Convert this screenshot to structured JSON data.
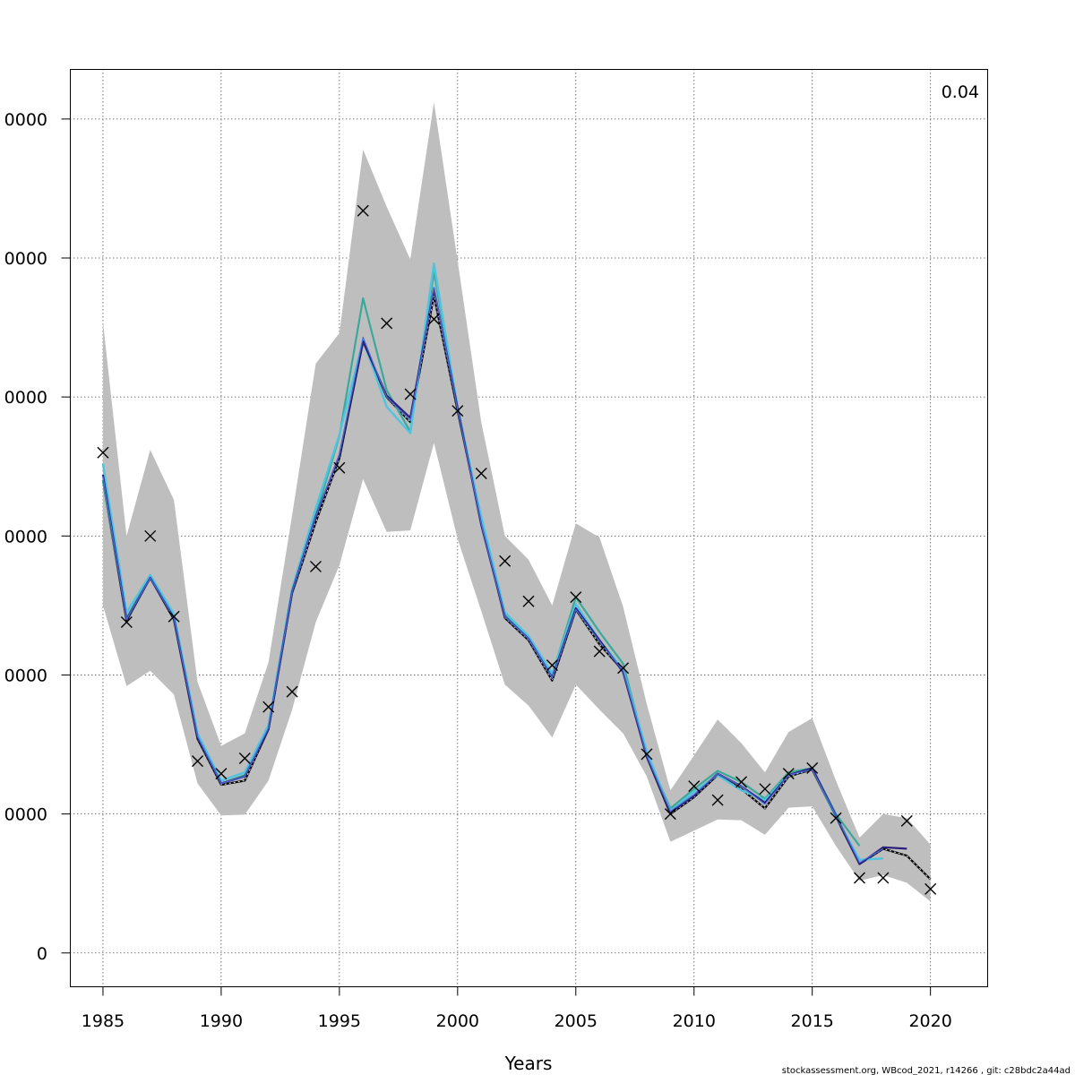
{
  "chart_data": {
    "type": "line",
    "xlabel": "Years",
    "ylabel": "",
    "annotation": "0.04",
    "footer": "stockassessment.org, WBcod_2021, r14266 , git: c28bdc2a44ad",
    "xlim": [
      1983.6,
      2022.4
    ],
    "ylim": [
      -2400,
      63600
    ],
    "x_ticks": [
      1985,
      1990,
      1995,
      2000,
      2005,
      2010,
      2015,
      2020
    ],
    "y_ticks": [
      0,
      10000,
      20000,
      30000,
      40000,
      50000,
      60000
    ],
    "y_tick_labels": [
      "0",
      "0000",
      "0000",
      "0000",
      "0000",
      "0000",
      "0000"
    ],
    "grid": true,
    "colors": {
      "band": "#bebebe",
      "base": "#000000",
      "teal": "#3aa99a",
      "cyan": "#4fc4e0",
      "navy": "#2a1f7a",
      "blue": "#4a6fd6",
      "observed": "#000000"
    },
    "confidence_band": {
      "years": [
        1985,
        1986,
        1987,
        1988,
        1989,
        1990,
        1991,
        1992,
        1993,
        1994,
        1995,
        1996,
        1997,
        1998,
        1999,
        2000,
        2001,
        2002,
        2003,
        2004,
        2005,
        2006,
        2007,
        2008,
        2009,
        2010,
        2011,
        2012,
        2013,
        2014,
        2015,
        2016,
        2017,
        2018,
        2019,
        2020
      ],
      "upper": [
        45400,
        30000,
        36200,
        32600,
        19500,
        14900,
        15800,
        20900,
        31500,
        42400,
        44600,
        57800,
        53700,
        49900,
        61200,
        49800,
        38200,
        30000,
        28300,
        25000,
        30900,
        29900,
        24900,
        17900,
        11700,
        14200,
        16800,
        15100,
        13000,
        15900,
        16900,
        12400,
        8300,
        10000,
        9700,
        7800
      ],
      "lower": [
        25000,
        19200,
        20300,
        18600,
        12200,
        9900,
        9950,
        12400,
        17500,
        23800,
        27900,
        34100,
        30300,
        30400,
        36700,
        29800,
        24600,
        19300,
        17800,
        15500,
        19300,
        17500,
        15800,
        12700,
        8000,
        8800,
        9600,
        9550,
        8500,
        10450,
        10550,
        7700,
        5200,
        5600,
        5050,
        3700
      ]
    },
    "series": [
      {
        "name": "",
        "key": "base",
        "values": [
          34000,
          23900,
          27000,
          24000,
          15400,
          12100,
          12400,
          16100,
          25900,
          31000,
          35600,
          44000,
          40000,
          38200,
          47300,
          39000,
          31000,
          24100,
          22500,
          19600,
          24700,
          22200,
          20300,
          14100,
          10000,
          11200,
          12800,
          11800,
          10400,
          12700,
          13200,
          9800,
          6400,
          7500,
          7000,
          5300
        ]
      },
      {
        "name": "",
        "key": "teal",
        "values": [
          34000,
          24100,
          27100,
          24200,
          15700,
          12200,
          12800,
          16300,
          26000,
          31500,
          37200,
          47100,
          40500,
          37500,
          49000,
          39300,
          31200,
          24300,
          22700,
          20000,
          25600,
          23100,
          20800,
          14300,
          10400,
          11800,
          13100,
          12300,
          11100,
          13000,
          13300,
          10000,
          7700,
          null,
          null,
          null
        ]
      },
      {
        "name": "",
        "key": "cyan",
        "values": [
          35200,
          24500,
          27200,
          24400,
          15800,
          12400,
          13000,
          16400,
          26200,
          32000,
          37300,
          44100,
          39300,
          37400,
          49600,
          39200,
          31400,
          24500,
          22800,
          20100,
          25100,
          22500,
          20400,
          14500,
          10200,
          11600,
          12800,
          11700,
          11000,
          12800,
          13300,
          9800,
          6700,
          6800,
          null,
          null
        ]
      },
      {
        "name": "",
        "key": "navy",
        "values": [
          34400,
          24000,
          27000,
          24100,
          15500,
          12200,
          12700,
          16100,
          26000,
          31400,
          35800,
          44000,
          40100,
          38500,
          47800,
          39200,
          30800,
          24200,
          22600,
          19800,
          24800,
          22500,
          20200,
          14100,
          10100,
          11300,
          12900,
          12000,
          10800,
          12800,
          13300,
          9900,
          6400,
          7600,
          7500,
          null
        ]
      },
      {
        "name": "",
        "key": "blue",
        "values": [
          34300,
          24000,
          27000,
          24100,
          15600,
          12200,
          12700,
          16200,
          26000,
          31400,
          35900,
          44300,
          40000,
          38300,
          47900,
          39100,
          30900,
          24200,
          22600,
          19800,
          24700,
          22400,
          20300,
          14200,
          10200,
          11400,
          12900,
          12000,
          10700,
          12800,
          13200,
          9900,
          6500,
          7500,
          null,
          null
        ]
      }
    ],
    "observed": {
      "years": [
        1985,
        1986,
        1987,
        1988,
        1989,
        1990,
        1991,
        1992,
        1993,
        1994,
        1995,
        1996,
        1997,
        1998,
        1999,
        2000,
        2001,
        2002,
        2003,
        2004,
        2005,
        2006,
        2007,
        2008,
        2009,
        2010,
        2011,
        2012,
        2013,
        2014,
        2015,
        2016,
        2017,
        2018,
        2019,
        2020
      ],
      "values": [
        36000,
        23800,
        30000,
        24200,
        13800,
        12900,
        14000,
        17700,
        18800,
        27800,
        34900,
        53400,
        45300,
        40200,
        45600,
        39000,
        34500,
        28200,
        25300,
        20700,
        25600,
        21700,
        20500,
        14300,
        10000,
        12000,
        11000,
        12300,
        11800,
        12900,
        13300,
        9700,
        5400,
        5400,
        9500,
        4600
      ]
    }
  }
}
